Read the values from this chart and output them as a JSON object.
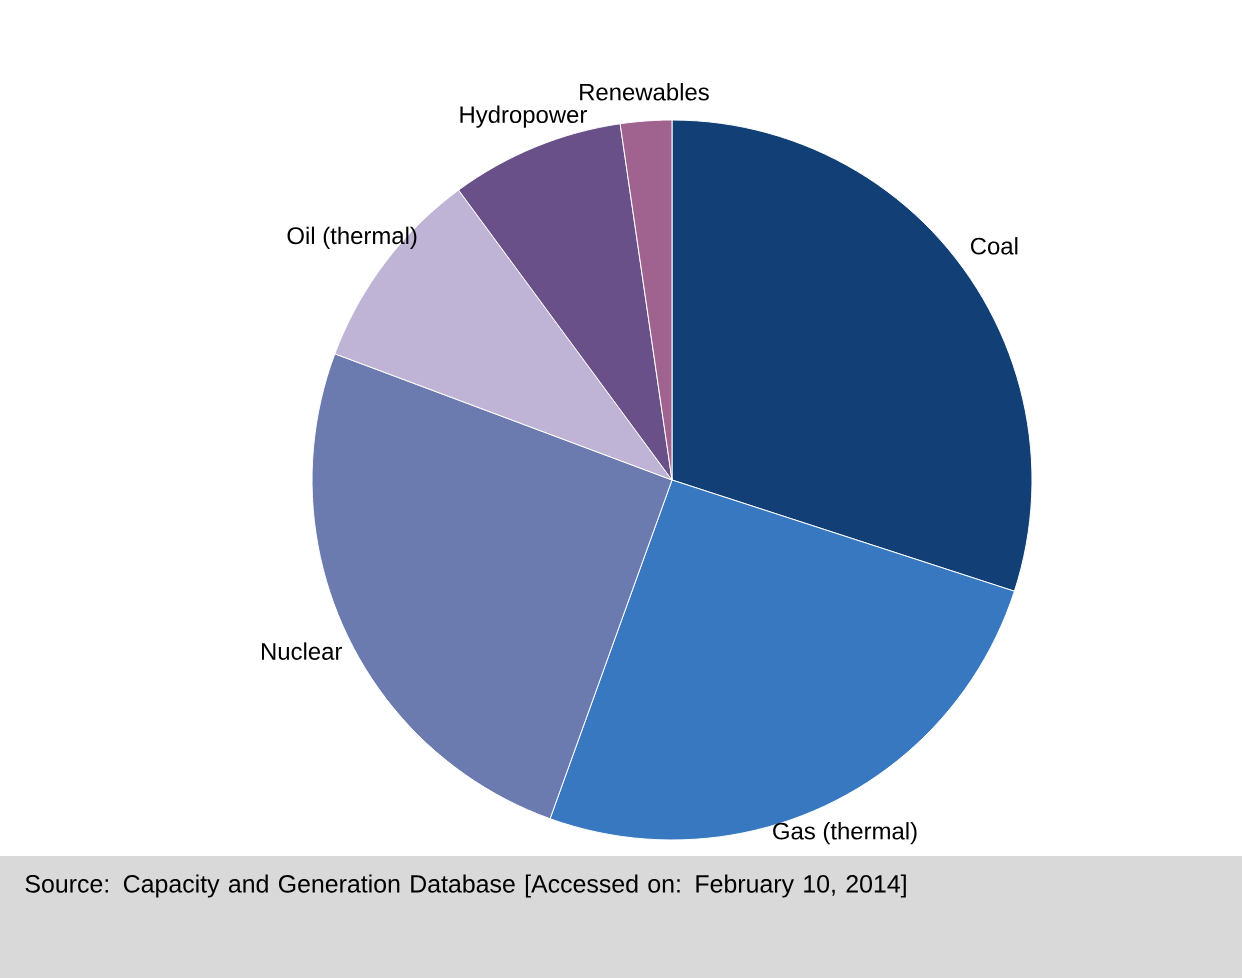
{
  "chart_data": {
    "type": "pie",
    "categories": [
      "Coal",
      "Gas (thermal)",
      "Nuclear",
      "Oil (thermal)",
      "Hydropower",
      "Renewables"
    ],
    "values": [
      30,
      25.5,
      25.2,
      9.2,
      7.8,
      2.3
    ],
    "colors": [
      "#123f76",
      "#3878c0",
      "#6b7bb0",
      "#c0b4d6",
      "#6a5088",
      "#a0628e"
    ],
    "annotations": [
      "Source: Capacity and Generation Database [Accessed on: February 10, 2014]"
    ]
  }
}
